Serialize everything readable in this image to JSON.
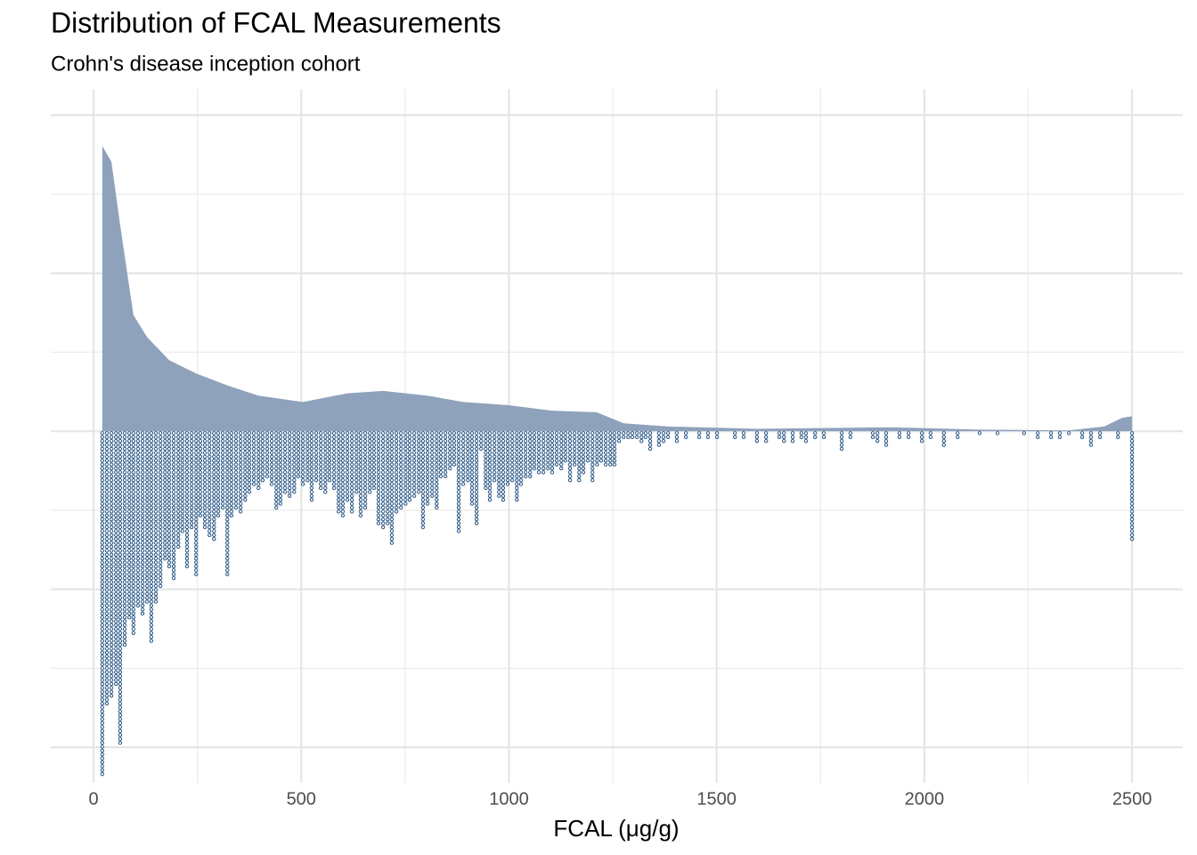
{
  "chart_data": {
    "type": "density_dotplot",
    "title": "Distribution of FCAL Measurements",
    "subtitle": "Crohn's disease inception cohort",
    "x_label": "FCAL (μg/g)",
    "xlim": [
      -103,
      2622
    ],
    "xticks": [
      0,
      500,
      1000,
      1500,
      2000,
      2500
    ],
    "xminor": [
      250,
      750,
      1250,
      1750,
      2250
    ],
    "ylim": [
      -4.45,
      4.33
    ],
    "yticks": [
      -4,
      -2,
      0,
      2,
      4
    ],
    "yminor": [
      -3,
      -1,
      1,
      3
    ],
    "grid": true,
    "density": {
      "color": "#8ca0bb",
      "x": [
        21,
        43,
        64,
        96,
        129,
        182,
        247,
        322,
        397,
        504,
        611,
        697,
        804,
        890,
        997,
        1104,
        1211,
        1276,
        1383,
        1597,
        1919,
        2133,
        2348,
        2433,
        2476,
        2500
      ],
      "y": [
        3.61,
        3.41,
        2.61,
        1.47,
        1.19,
        0.9,
        0.73,
        0.58,
        0.45,
        0.37,
        0.48,
        0.51,
        0.45,
        0.37,
        0.33,
        0.26,
        0.24,
        0.1,
        0.06,
        0.03,
        0.05,
        0.02,
        0.01,
        0.06,
        0.17,
        0.19
      ]
    },
    "dots": {
      "color": "#2e5a87",
      "x": [
        21,
        32,
        43,
        54,
        64,
        75,
        86,
        96,
        107,
        118,
        129,
        139,
        150,
        161,
        172,
        182,
        193,
        204,
        214,
        225,
        236,
        247,
        257,
        268,
        279,
        290,
        300,
        311,
        322,
        332,
        343,
        354,
        365,
        375,
        386,
        397,
        407,
        418,
        429,
        440,
        450,
        461,
        472,
        483,
        493,
        504,
        515,
        525,
        536,
        547,
        558,
        568,
        579,
        590,
        600,
        611,
        622,
        633,
        643,
        654,
        665,
        675,
        686,
        697,
        708,
        718,
        729,
        740,
        751,
        761,
        772,
        783,
        793,
        804,
        815,
        826,
        836,
        847,
        858,
        868,
        879,
        890,
        901,
        911,
        922,
        933,
        944,
        954,
        965,
        976,
        986,
        997,
        1008,
        1019,
        1029,
        1040,
        1051,
        1061,
        1072,
        1083,
        1094,
        1104,
        1115,
        1126,
        1136,
        1147,
        1158,
        1169,
        1179,
        1190,
        1201,
        1212,
        1222,
        1233,
        1244,
        1254,
        1265,
        1276,
        1287,
        1297,
        1308,
        1319,
        1329,
        1340,
        1361,
        1372,
        1383,
        1404,
        1426,
        1458,
        1479,
        1501,
        1544,
        1565,
        1597,
        1619,
        1651,
        1662,
        1683,
        1704,
        1715,
        1737,
        1758,
        1801,
        1822,
        1876,
        1887,
        1908,
        1940,
        1962,
        1994,
        2015,
        2047,
        2080,
        2133,
        2176,
        2240,
        2273,
        2305,
        2326,
        2348,
        2380,
        2401,
        2423,
        2466,
        2500
      ],
      "counts": [
        88,
        70,
        68,
        65,
        80,
        55,
        48,
        52,
        45,
        47,
        44,
        54,
        44,
        40,
        33,
        35,
        38,
        30,
        26,
        35,
        25,
        37,
        22,
        25,
        27,
        28,
        22,
        20,
        37,
        22,
        20,
        21,
        18,
        16,
        14,
        15,
        13,
        12,
        14,
        20,
        19,
        16,
        17,
        16,
        12,
        14,
        13,
        18,
        13,
        15,
        16,
        13,
        15,
        21,
        22,
        18,
        21,
        16,
        22,
        20,
        16,
        15,
        24,
        25,
        24,
        29,
        21,
        20,
        19,
        18,
        17,
        16,
        25,
        19,
        17,
        20,
        12,
        12,
        10,
        9,
        26,
        14,
        13,
        19,
        24,
        5,
        15,
        18,
        13,
        17,
        18,
        14,
        13,
        18,
        14,
        12,
        12,
        10,
        11,
        11,
        10,
        11,
        9,
        10,
        8,
        13,
        9,
        13,
        11,
        8,
        13,
        9,
        8,
        9,
        9,
        9,
        3,
        2,
        2,
        2,
        2,
        3,
        2,
        5,
        4,
        3,
        2,
        3,
        2,
        2,
        2,
        2,
        2,
        2,
        3,
        3,
        2,
        3,
        3,
        2,
        3,
        2,
        2,
        5,
        2,
        2,
        3,
        4,
        2,
        2,
        3,
        2,
        4,
        2,
        1,
        1,
        1,
        2,
        2,
        2,
        1,
        2,
        4,
        2,
        2,
        28
      ]
    }
  }
}
